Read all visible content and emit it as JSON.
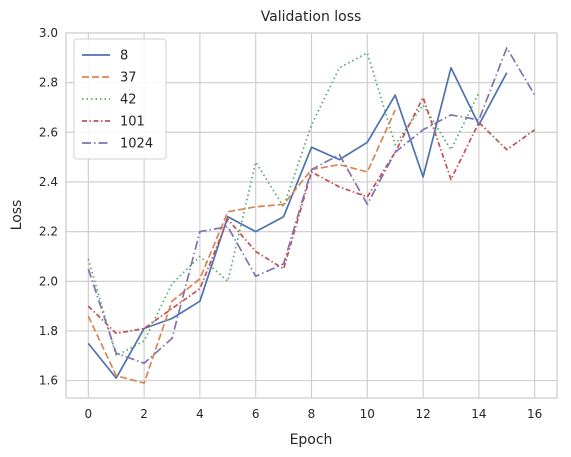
{
  "chart_data": {
    "type": "line",
    "title": "Validation loss",
    "xlabel": "Epoch",
    "ylabel": "Loss",
    "xlim": [
      -0.8,
      16.8
    ],
    "ylim": [
      1.53,
      3.0
    ],
    "xticks": [
      0,
      2,
      4,
      6,
      8,
      10,
      12,
      14,
      16
    ],
    "yticks": [
      1.6,
      1.8,
      2.0,
      2.2,
      2.4,
      2.6,
      2.8,
      3.0
    ],
    "grid": true,
    "legend_position": "top-left",
    "series": [
      {
        "name": "8",
        "color": "#4c72b0",
        "dash": "solid",
        "x": [
          0,
          1,
          2,
          3,
          4,
          5,
          6,
          7,
          8,
          9,
          10,
          11,
          12,
          13,
          14,
          15
        ],
        "values": [
          1.75,
          1.61,
          1.81,
          1.85,
          1.92,
          2.26,
          2.2,
          2.26,
          2.54,
          2.49,
          2.56,
          2.75,
          2.42,
          2.86,
          2.63,
          2.84
        ]
      },
      {
        "name": "37",
        "color": "#dd8452",
        "dash": "dashed",
        "x": [
          0,
          1,
          2,
          3,
          4,
          5,
          6,
          7,
          8,
          9,
          10,
          11
        ],
        "values": [
          1.86,
          1.62,
          1.59,
          1.92,
          2.01,
          2.28,
          2.3,
          2.31,
          2.45,
          2.47,
          2.44,
          2.69
        ]
      },
      {
        "name": "42",
        "color": "#55a868",
        "dash": "dotted",
        "x": [
          0,
          1,
          2,
          3,
          4,
          5,
          6,
          7,
          8,
          9,
          10,
          11,
          12,
          13,
          14
        ],
        "values": [
          2.09,
          1.7,
          1.76,
          1.99,
          2.1,
          2.0,
          2.48,
          2.3,
          2.63,
          2.86,
          2.92,
          2.55,
          2.71,
          2.53,
          2.76
        ]
      },
      {
        "name": "101",
        "color": "#c44e52",
        "dash": "dashdot-dense",
        "x": [
          0,
          1,
          2,
          3,
          4,
          5,
          6,
          7,
          8,
          9,
          10,
          11,
          12,
          13,
          14,
          15,
          16
        ],
        "values": [
          1.9,
          1.79,
          1.81,
          1.89,
          1.97,
          2.25,
          2.12,
          2.05,
          2.44,
          2.38,
          2.34,
          2.52,
          2.74,
          2.41,
          2.64,
          2.53,
          2.61
        ]
      },
      {
        "name": "1024",
        "color": "#8172b3",
        "dash": "dashdot",
        "x": [
          0,
          1,
          2,
          3,
          4,
          5,
          6,
          7,
          8,
          9,
          10,
          11,
          12,
          13,
          14,
          15,
          16
        ],
        "values": [
          2.05,
          1.71,
          1.67,
          1.77,
          2.2,
          2.22,
          2.02,
          2.07,
          2.45,
          2.51,
          2.31,
          2.52,
          2.61,
          2.67,
          2.65,
          2.94,
          2.75
        ]
      }
    ]
  }
}
